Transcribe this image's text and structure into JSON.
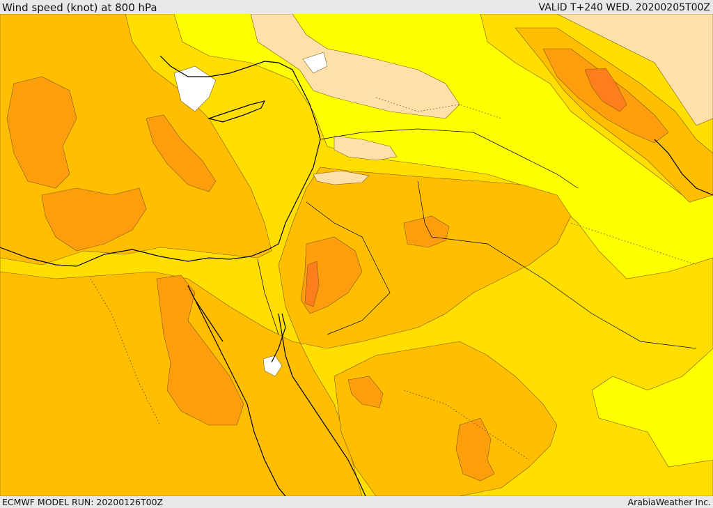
{
  "header": {
    "title": "Wind speed (knot) at 800 hPa",
    "valid_time": "VALID T+240 WED. 20200205T00Z"
  },
  "footer": {
    "model_run": "ECMWF MODEL RUN: 20200126T00Z",
    "credit": "ArabiaWeather Inc."
  },
  "map": {
    "colors": {
      "calm": "#ffffff",
      "low": "#ffe0a8",
      "yellow": "#ffff00",
      "gold": "#ffde00",
      "amber": "#ffbe00",
      "orange": "#ff9e0c",
      "dark_orange": "#ff7e1c"
    }
  }
}
